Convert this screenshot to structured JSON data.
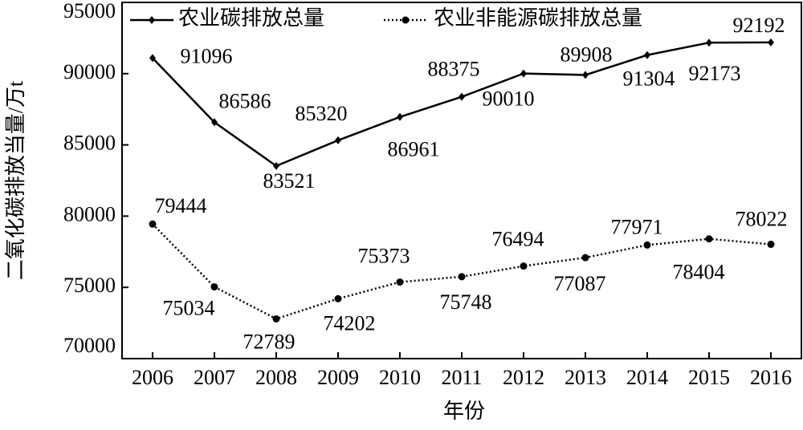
{
  "chart_data": {
    "type": "line",
    "x_label": "年份",
    "y_label": "二氧化碳排放当量/万t",
    "categories": [
      "2006",
      "2007",
      "2008",
      "2009",
      "2010",
      "2011",
      "2012",
      "2013",
      "2014",
      "2015",
      "2016"
    ],
    "series": [
      {
        "name": "农业碳排放总量",
        "color": "#000000",
        "style": "solid",
        "values": [
          91096,
          86586,
          83521,
          85320,
          86961,
          88375,
          90010,
          89908,
          91304,
          92173,
          92192
        ]
      },
      {
        "name": "农业非能源碳排放总量",
        "color": "#000000",
        "style": "dotted",
        "values": [
          79444,
          75034,
          72789,
          74202,
          75373,
          75748,
          76494,
          77087,
          77971,
          78404,
          78022
        ]
      }
    ],
    "ylim": [
      70000,
      95000
    ],
    "yticks": [
      70000,
      75000,
      80000,
      85000,
      90000,
      95000
    ],
    "grid": false,
    "legend": "top"
  }
}
